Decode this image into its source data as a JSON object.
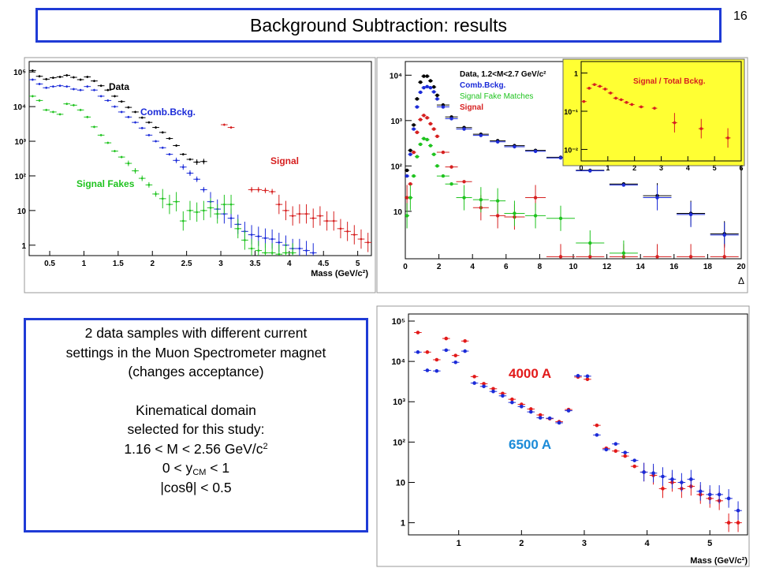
{
  "slide": {
    "title": "Background Subtraction: results",
    "page_number": "16",
    "info": {
      "line1": "2 data samples with different current",
      "line2": "settings in the Muon Spectrometer magnet",
      "line3": "(changes acceptance)",
      "line4": "Kinematical domain",
      "line5": "selected for this study:",
      "line6_main": "1.16 < M < 2.56 GeV/c",
      "line6_sup": "2",
      "line7_a": "0 < y",
      "line7_sub": "CM",
      "line7_b": " < 1",
      "line8": "|cosθ| < 0.5"
    }
  },
  "chart_data": [
    {
      "type": "scatter",
      "xlabel": "Mass (GeV/c²)",
      "ylabel": "",
      "xlim": [
        0.2,
        5.2
      ],
      "ylim": [
        0.5,
        200000
      ],
      "yscale": "log",
      "xticks": [
        "0.5",
        "1",
        "1.5",
        "2",
        "2.5",
        "3",
        "3.5",
        "4",
        "4.5",
        "5"
      ],
      "yticks": [
        "1",
        "10",
        "10²",
        "10³",
        "10⁴",
        "10⁵"
      ],
      "series": [
        {
          "name": "Data",
          "color": "#000000",
          "x": [
            0.25,
            0.35,
            0.45,
            0.55,
            0.65,
            0.75,
            0.85,
            0.95,
            1.05,
            1.15,
            1.25,
            1.35,
            1.45,
            1.55,
            1.65,
            1.75,
            1.85,
            1.95,
            2.05,
            2.15,
            2.25,
            2.35,
            2.45,
            2.55,
            2.65,
            2.75
          ],
          "y": [
            110000,
            75000,
            62000,
            68000,
            72000,
            80000,
            70000,
            60000,
            72000,
            55000,
            40000,
            30000,
            20000,
            14000,
            9500,
            7000,
            4800,
            3500,
            2500,
            1800,
            1200,
            750,
            420,
            300,
            250,
            260
          ]
        },
        {
          "name": "Comb.Bckg.",
          "color": "#1b2bd8",
          "x": [
            0.25,
            0.35,
            0.45,
            0.55,
            0.65,
            0.75,
            0.85,
            0.95,
            1.05,
            1.15,
            1.25,
            1.35,
            1.45,
            1.55,
            1.65,
            1.75,
            1.85,
            1.95,
            2.05,
            2.15,
            2.25,
            2.35,
            2.45,
            2.55,
            2.65,
            2.75,
            2.85,
            2.95,
            3.05,
            3.15,
            3.25,
            3.35,
            3.45,
            3.55,
            3.65,
            3.75,
            3.85,
            3.95,
            4.05,
            4.15,
            4.25,
            4.35
          ],
          "y": [
            60000,
            45000,
            35000,
            38000,
            40000,
            38000,
            32000,
            30000,
            38000,
            30000,
            20000,
            15000,
            10000,
            7000,
            5000,
            3500,
            2400,
            1500,
            1000,
            650,
            420,
            280,
            180,
            120,
            80,
            40,
            18,
            11,
            8,
            6,
            4,
            2.5,
            2,
            1.8,
            1.6,
            1.5,
            1.2,
            1,
            0.8,
            0.8,
            0.7,
            0.6
          ]
        },
        {
          "name": "Signal",
          "color": "#d62020",
          "x": [
            3.05,
            3.15,
            3.45,
            3.55,
            3.65,
            3.75,
            3.85,
            3.95,
            4.05,
            4.15,
            4.25,
            4.35,
            4.45,
            4.55,
            4.65,
            4.75,
            4.85,
            4.95,
            5.05,
            5.15
          ],
          "y": [
            3000,
            2500,
            40,
            40,
            38,
            35,
            15,
            10,
            7,
            8,
            8,
            6,
            7,
            5,
            5,
            3,
            2.5,
            2,
            1.5,
            1.2
          ]
        },
        {
          "name": "Signal Fakes",
          "color": "#1fc31f",
          "x": [
            0.25,
            0.35,
            0.45,
            0.55,
            0.65,
            0.75,
            0.85,
            0.95,
            1.05,
            1.15,
            1.25,
            1.35,
            1.45,
            1.55,
            1.65,
            1.75,
            1.85,
            1.95,
            2.05,
            2.15,
            2.25,
            2.35,
            2.45,
            2.55,
            2.65,
            2.75,
            2.85,
            2.95,
            3.05,
            3.15,
            3.25,
            3.35,
            3.45,
            3.55,
            3.65,
            3.75,
            3.85,
            3.95,
            4.05
          ],
          "y": [
            20000,
            15000,
            8000,
            7000,
            6000,
            12000,
            11000,
            8000,
            5000,
            2600,
            1500,
            900,
            520,
            350,
            230,
            140,
            85,
            55,
            30,
            22,
            15,
            18,
            5,
            10,
            9,
            10,
            12,
            8,
            15,
            15,
            3,
            1.4,
            0.8,
            0.7,
            0.6,
            0.6,
            0.55,
            0.6,
            0.6
          ]
        }
      ],
      "labels": {
        "data": "Data",
        "comb": "Comb.Bckg.",
        "signal": "Signal",
        "fakes": "Signal Fakes"
      }
    },
    {
      "type": "scatter",
      "xlabel": "Δ",
      "xlim": [
        0,
        20
      ],
      "ylim": [
        0.9,
        20000
      ],
      "yscale": "log",
      "xticks": [
        "0",
        "2",
        "4",
        "6",
        "8",
        "10",
        "12",
        "14",
        "16",
        "18",
        "20"
      ],
      "yticks": [
        "10",
        "10²",
        "10³",
        "10⁴"
      ],
      "series": [
        {
          "name": "Data, 1.2<M<2.7 GeV/c²",
          "color": "#000000",
          "x": [
            0.1,
            0.3,
            0.5,
            0.7,
            0.9,
            1.1,
            1.3,
            1.5,
            1.7,
            1.9,
            2.25,
            2.75,
            3.5,
            4.5,
            5.5,
            6.5,
            7.75,
            9.25,
            11,
            13,
            15,
            17,
            19
          ],
          "y": [
            80,
            220,
            800,
            3000,
            7000,
            9500,
            9500,
            7500,
            5500,
            3600,
            2200,
            1200,
            700,
            500,
            360,
            280,
            220,
            155,
            80,
            40,
            22,
            9,
            3.2
          ]
        },
        {
          "name": "Comb.Bckg.",
          "color": "#1b2bd8",
          "x": [
            0.1,
            0.3,
            0.5,
            0.7,
            0.9,
            1.1,
            1.3,
            1.5,
            1.7,
            1.9,
            2.25,
            2.75,
            3.5,
            4.5,
            5.5,
            6.5,
            7.75,
            9.25,
            11,
            13,
            15,
            17,
            19
          ],
          "y": [
            60,
            180,
            650,
            2000,
            4200,
            5300,
            5600,
            5300,
            4300,
            3000,
            2000,
            1100,
            650,
            470,
            340,
            265,
            210,
            150,
            78,
            38,
            20,
            8.5,
            3
          ]
        },
        {
          "name": "Signal",
          "color": "#d62020",
          "x": [
            0.1,
            0.3,
            0.5,
            0.7,
            0.9,
            1.1,
            1.3,
            1.5,
            1.7,
            1.9,
            2.25,
            2.75,
            3.5,
            4.5,
            5.5,
            6.5,
            7.75,
            9.25,
            11,
            13,
            15,
            17,
            19
          ],
          "y": [
            20,
            40,
            200,
            550,
            1050,
            1300,
            1150,
            850,
            650,
            450,
            200,
            95,
            45,
            12,
            8,
            7.5,
            20,
            1,
            1,
            1,
            1,
            1,
            1
          ]
        },
        {
          "name": "Signal Fake Matches",
          "color": "#1fc31f",
          "x": [
            0.1,
            0.3,
            0.5,
            0.7,
            0.9,
            1.1,
            1.3,
            1.5,
            1.7,
            1.9,
            2.25,
            2.75,
            3.5,
            4.5,
            5.5,
            6.5,
            7.75,
            9.25,
            11,
            13
          ],
          "y": [
            8,
            20,
            60,
            160,
            300,
            400,
            380,
            280,
            180,
            100,
            60,
            40,
            20,
            18,
            17,
            9,
            8,
            7,
            2,
            1.2
          ]
        }
      ],
      "labels": {
        "data": "Data, 1.2<M<2.7 GeV/c²",
        "comb": "Comb.Bckg.",
        "fake": "Signal Fake Matches",
        "signal": "Signal"
      },
      "inset": {
        "title": "Signal / Total Bckg.",
        "xlim": [
          0,
          6
        ],
        "ylim": [
          0.005,
          2
        ],
        "yscale": "log",
        "xticks": [
          "0",
          "1",
          "2",
          "3",
          "4",
          "5",
          "6"
        ],
        "yticks": [
          "10⁻²",
          "10⁻¹",
          "1"
        ],
        "background": "#ffff33",
        "x": [
          0.1,
          0.3,
          0.5,
          0.7,
          0.9,
          1.1,
          1.3,
          1.5,
          1.7,
          1.9,
          2.25,
          2.75,
          3.5,
          4.5,
          5.5
        ],
        "y": [
          0.18,
          0.4,
          0.5,
          0.45,
          0.38,
          0.3,
          0.22,
          0.2,
          0.17,
          0.15,
          0.13,
          0.12,
          0.05,
          0.035,
          0.02
        ]
      }
    },
    {
      "type": "scatter",
      "xlabel": "Mass (GeV/c²)",
      "xlim": [
        0.2,
        5.6
      ],
      "ylim": [
        0.5,
        150000
      ],
      "yscale": "log",
      "xticks": [
        "1",
        "2",
        "3",
        "4",
        "5"
      ],
      "yticks": [
        "1",
        "10",
        "10²",
        "10³",
        "10⁴",
        "10⁵"
      ],
      "series": [
        {
          "name": "4000 A",
          "color": "#e21a1a",
          "x": [
            0.35,
            0.5,
            0.65,
            0.8,
            0.95,
            1.1,
            1.25,
            1.4,
            1.55,
            1.7,
            1.85,
            2.0,
            2.15,
            2.3,
            2.45,
            2.6,
            2.75,
            2.9,
            3.05,
            3.2,
            3.35,
            3.5,
            3.65,
            3.8,
            3.95,
            4.1,
            4.25,
            4.4,
            4.55,
            4.7,
            4.85,
            5.0,
            5.15,
            5.3,
            5.45
          ],
          "y": [
            52000,
            17000,
            11000,
            37000,
            14000,
            32000,
            4200,
            2800,
            2100,
            1600,
            1150,
            860,
            660,
            470,
            380,
            320,
            640,
            4100,
            3600,
            260,
            70,
            60,
            45,
            25,
            18,
            15,
            7,
            10,
            7,
            8,
            5,
            4,
            3.5,
            1,
            1
          ]
        },
        {
          "name": "6500 A",
          "color": "#1b2bd8",
          "x": [
            0.35,
            0.5,
            0.65,
            0.8,
            0.95,
            1.1,
            1.25,
            1.4,
            1.55,
            1.7,
            1.85,
            2.0,
            2.15,
            2.3,
            2.45,
            2.6,
            2.75,
            2.9,
            3.05,
            3.2,
            3.35,
            3.5,
            3.65,
            3.8,
            3.95,
            4.1,
            4.25,
            4.4,
            4.55,
            4.7,
            4.85,
            5.0,
            5.15,
            5.3,
            5.45
          ],
          "y": [
            17000,
            6000,
            5800,
            19000,
            9500,
            18000,
            2900,
            2400,
            1800,
            1400,
            960,
            760,
            560,
            400,
            390,
            300,
            600,
            4400,
            4300,
            150,
            65,
            90,
            55,
            35,
            18,
            17,
            14,
            12,
            10,
            12,
            6,
            5,
            5,
            4,
            2
          ]
        }
      ],
      "labels": {
        "a": "4000 A",
        "b": "6500 A"
      }
    }
  ]
}
